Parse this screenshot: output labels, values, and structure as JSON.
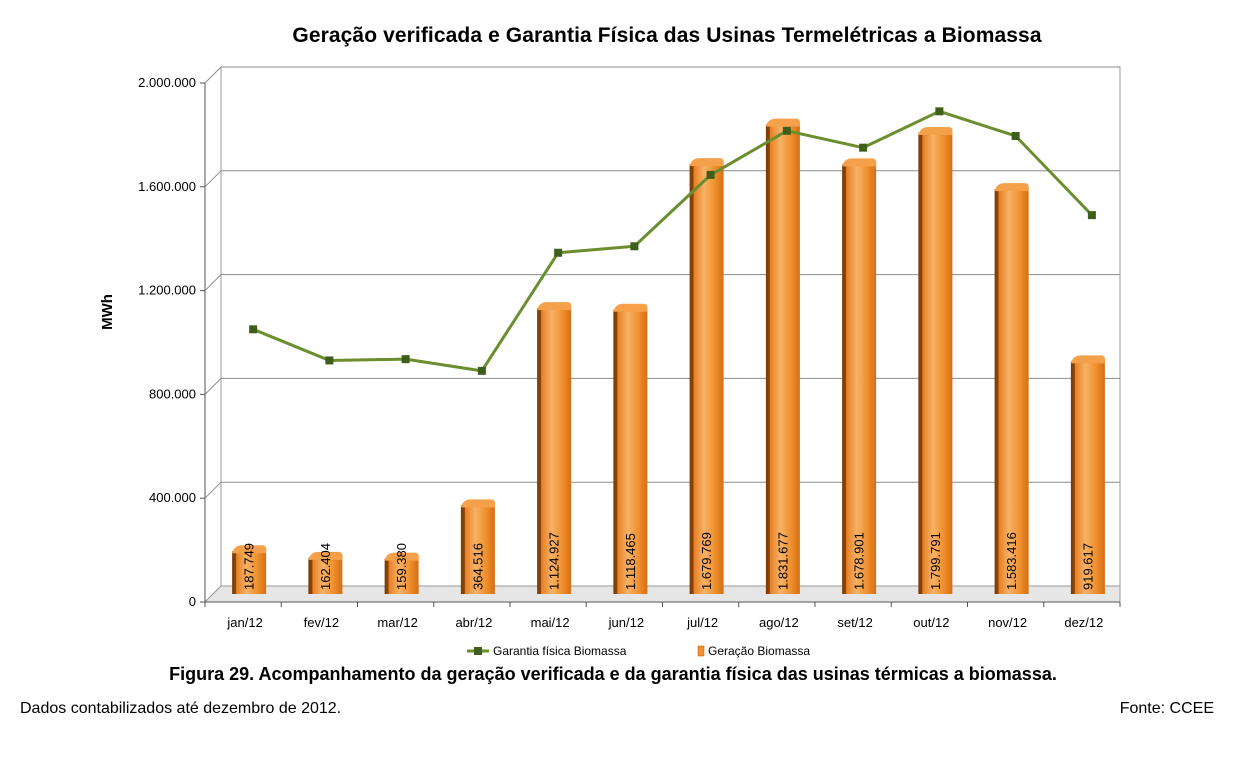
{
  "chart_data": {
    "type": "bar",
    "title": "Geração verificada e Garantia Física das Usinas Termelétricas a Biomassa",
    "ylabel": "MWh",
    "xlabel": "",
    "ylim": [
      0,
      2000000
    ],
    "ytick_values": [
      0,
      400000,
      800000,
      1200000,
      1600000,
      2000000
    ],
    "ytick_labels": [
      "0",
      "400.000",
      "800.000",
      "1.200.000",
      "1.600.000",
      "2.000.000"
    ],
    "categories": [
      "jan/12",
      "fev/12",
      "mar/12",
      "abr/12",
      "mai/12",
      "jun/12",
      "jul/12",
      "ago/12",
      "set/12",
      "out/12",
      "nov/12",
      "dez/12"
    ],
    "grid": true,
    "legend_position": "bottom",
    "series": [
      {
        "name": "Garantia física Biomassa",
        "kind": "line",
        "color": "#6B8E2E",
        "values": [
          1020000,
          900000,
          905000,
          860000,
          1315000,
          1340000,
          1615000,
          1785000,
          1720000,
          1860000,
          1765000,
          1460000
        ]
      },
      {
        "name": "Geração Biomassa",
        "kind": "bar",
        "color": "#F0902E",
        "values": [
          187749,
          162404,
          159380,
          364516,
          1124927,
          1118465,
          1679769,
          1831677,
          1678901,
          1799791,
          1583416,
          919617
        ],
        "data_labels": [
          "187.749",
          "162.404",
          "159.380",
          "364.516",
          "1.124.927",
          "1.118.465",
          "1.679.769",
          "1.831.677",
          "1.678.901",
          "1.799.791",
          "1.583.416",
          "919.617"
        ]
      }
    ]
  },
  "caption": "Figura 29. Acompanhamento da geração verificada e da garantia física das usinas térmicas a biomassa.",
  "footnote_left": "Dados contabilizados até dezembro de 2012.",
  "footnote_right": "Fonte: CCEE"
}
